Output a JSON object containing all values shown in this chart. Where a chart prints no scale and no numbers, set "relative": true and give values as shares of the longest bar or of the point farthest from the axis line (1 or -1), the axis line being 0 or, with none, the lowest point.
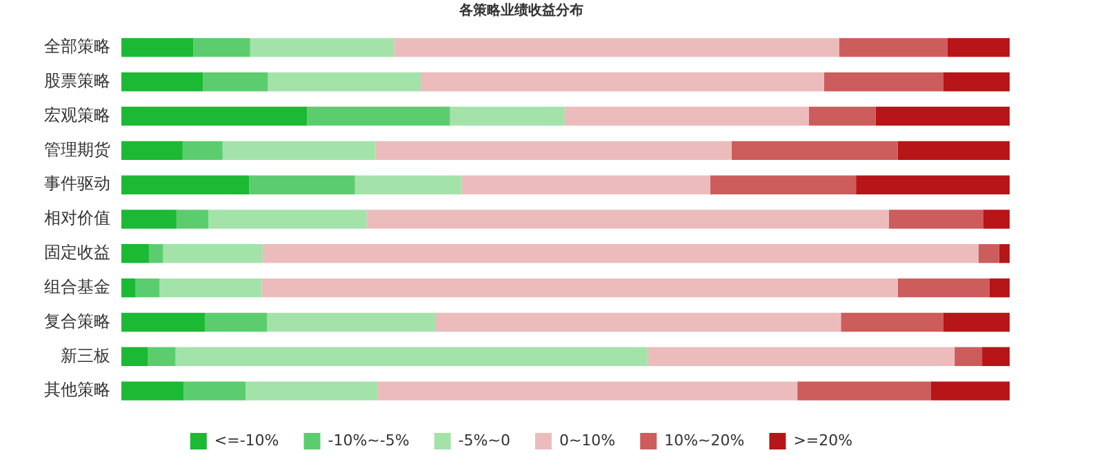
{
  "chart_data": {
    "type": "bar",
    "title": "各策略业绩收益分布",
    "orientation": "horizontal",
    "stacked": true,
    "relative": true,
    "legend": "bottom",
    "grid": false,
    "categories": [
      "全部策略",
      "股票策略",
      "宏观策略",
      "管理期货",
      "事件驱动",
      "相对价值",
      "固定收益",
      "组合基金",
      "复合策略",
      "新三板",
      "其他策略"
    ],
    "series": [
      {
        "name": "<=-10%",
        "color": "#1bb934",
        "values": [
          0.081,
          0.092,
          0.209,
          0.069,
          0.144,
          0.062,
          0.031,
          0.016,
          0.094,
          0.03,
          0.07
        ]
      },
      {
        "name": "-10%~-5%",
        "color": "#5ccd6e",
        "values": [
          0.064,
          0.073,
          0.161,
          0.045,
          0.119,
          0.036,
          0.016,
          0.027,
          0.07,
          0.031,
          0.07
        ]
      },
      {
        "name": "-5%~0",
        "color": "#a3e3aa",
        "values": [
          0.162,
          0.172,
          0.129,
          0.172,
          0.12,
          0.178,
          0.112,
          0.115,
          0.19,
          0.532,
          0.148
        ]
      },
      {
        "name": "0~10%",
        "color": "#ecbcbc",
        "values": [
          0.501,
          0.454,
          0.275,
          0.401,
          0.28,
          0.588,
          0.806,
          0.716,
          0.456,
          0.345,
          0.473
        ]
      },
      {
        "name": "10%~20%",
        "color": "#cd5c5c",
        "values": [
          0.122,
          0.134,
          0.075,
          0.187,
          0.164,
          0.106,
          0.023,
          0.103,
          0.115,
          0.031,
          0.15
        ]
      },
      {
        "name": ">=20%",
        "color": "#b71517",
        "values": [
          0.07,
          0.075,
          0.151,
          0.126,
          0.173,
          0.03,
          0.012,
          0.023,
          0.075,
          0.031,
          0.089
        ]
      }
    ]
  }
}
